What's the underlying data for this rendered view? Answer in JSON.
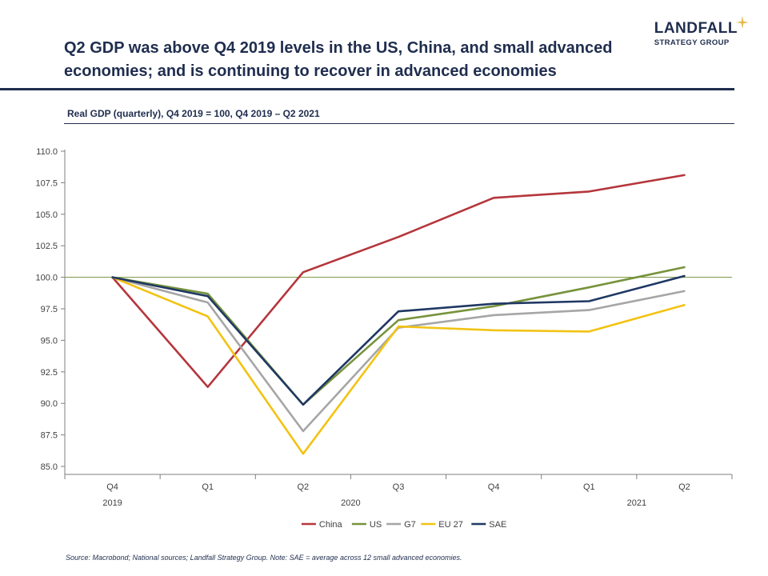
{
  "header": {
    "title": "Q2 GDP was above Q4 2019 levels in the US, China, and small advanced economies; and is continuing to recover in advanced economies",
    "logo_name": "LANDFALL",
    "logo_sub": "STRATEGY GROUP",
    "subtitle": "Real GDP (quarterly), Q4 2019 = 100, Q4 2019 – Q2 2021"
  },
  "footer": {
    "source": "Source: Macrobond;  National sources; Landfall Strategy Group. Note: SAE = average across 12 small advanced economies."
  },
  "colors": {
    "navy": "#1f2d4e",
    "gold": "#e6b84b"
  },
  "chart_data": {
    "type": "line",
    "categories": [
      "Q4",
      "Q1",
      "Q2",
      "Q3",
      "Q4",
      "Q1",
      "Q2"
    ],
    "year_labels": [
      {
        "label": "2019",
        "at": 0
      },
      {
        "label": "2020",
        "at": 2.5
      },
      {
        "label": "2021",
        "at": 5.5
      }
    ],
    "ylim": [
      85.0,
      110.0
    ],
    "yticks": [
      "110.0",
      "107.5",
      "105.0",
      "102.5",
      "100.0",
      "97.5",
      "95.0",
      "92.5",
      "90.0",
      "87.5",
      "85.0"
    ],
    "ytick_values": [
      110.0,
      107.5,
      105.0,
      102.5,
      100.0,
      97.5,
      95.0,
      92.5,
      90.0,
      87.5,
      85.0
    ],
    "reference_line": 100.0,
    "legend_position": "bottom",
    "series": [
      {
        "name": "China",
        "color": "#b5363c",
        "values": [
          100.0,
          91.3,
          100.4,
          103.2,
          106.3,
          106.8,
          108.1
        ]
      },
      {
        "name": "US",
        "color": "#77933c",
        "values": [
          100.0,
          98.7,
          89.9,
          96.6,
          97.7,
          99.2,
          100.8
        ]
      },
      {
        "name": "G7",
        "color": "#a6a6a6",
        "values": [
          100.0,
          98.0,
          87.8,
          96.0,
          97.0,
          97.4,
          98.9
        ]
      },
      {
        "name": "EU 27",
        "color": "#f2c313",
        "values": [
          100.0,
          96.9,
          86.0,
          96.1,
          95.8,
          95.7,
          97.8
        ]
      },
      {
        "name": "SAE",
        "color": "#1f3864",
        "values": [
          100.0,
          98.5,
          89.9,
          97.3,
          97.9,
          98.1,
          100.1
        ]
      }
    ]
  }
}
